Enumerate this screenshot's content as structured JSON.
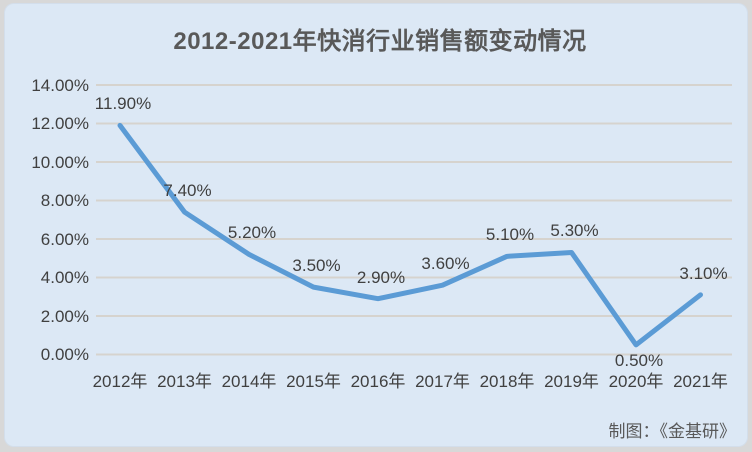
{
  "title": "2012-2021年快消行业销售额变动情况",
  "footer": {
    "credit": "制图：《金基研》"
  },
  "colors": {
    "page_frame": "#d8d8d8",
    "card_background": "#dce8f5",
    "grid": "#d6d3ce",
    "line": "#5b9bd5",
    "label_text": "#404040",
    "title_text": "#595959"
  },
  "chart_data": {
    "type": "line",
    "title": "2012-2021年快消行业销售额变动情况",
    "categories": [
      "2012年",
      "2013年",
      "2014年",
      "2015年",
      "2016年",
      "2017年",
      "2018年",
      "2019年",
      "2020年",
      "2021年"
    ],
    "series": [
      {
        "name": "快消行业销售额变动",
        "values": [
          11.9,
          7.4,
          5.2,
          3.5,
          2.9,
          3.6,
          5.1,
          5.3,
          0.5,
          3.1
        ]
      }
    ],
    "data_labels": [
      "11.90%",
      "7.40%",
      "5.20%",
      "3.50%",
      "2.90%",
      "3.60%",
      "5.10%",
      "5.30%",
      "0.50%",
      "3.10%"
    ],
    "data_label_positions": [
      "above",
      "above",
      "above",
      "above",
      "above",
      "above",
      "above",
      "above",
      "below",
      "above"
    ],
    "y_ticks": [
      "14.00%",
      "12.00%",
      "10.00%",
      "8.00%",
      "6.00%",
      "4.00%",
      "2.00%",
      "0.00%"
    ],
    "y_tick_values": [
      14,
      12,
      10,
      8,
      6,
      4,
      2,
      0
    ],
    "ylim": [
      0,
      14
    ],
    "grid": true,
    "legend": "none"
  }
}
